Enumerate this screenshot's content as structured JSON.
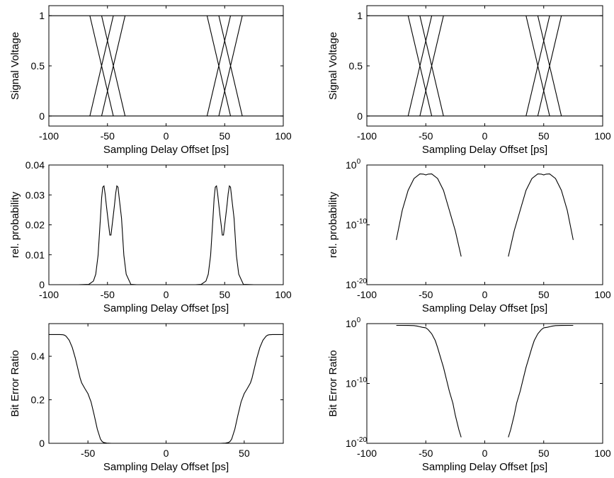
{
  "chart_data": [
    {
      "type": "line",
      "panel": "top-left",
      "xlabel": "Sampling Delay Offset [ps]",
      "ylabel": "Signal Voltage",
      "xlim": [
        -100,
        100
      ],
      "ylim": [
        -0.1,
        1.1
      ],
      "yscale": "linear",
      "xticks": [
        -100,
        -50,
        0,
        50,
        100
      ],
      "yticks": [
        0,
        0.5,
        1
      ],
      "xticklabels": [
        "-100",
        "-50",
        "0",
        "50",
        "100"
      ],
      "yticklabels": [
        "0",
        "0.5",
        "1"
      ],
      "grid": false,
      "series": [
        {
          "x": [
            -100,
            100
          ],
          "y": [
            1,
            1
          ]
        },
        {
          "x": [
            -100,
            100
          ],
          "y": [
            0,
            0
          ]
        },
        {
          "x": [
            -65,
            -45
          ],
          "y": [
            1,
            0
          ]
        },
        {
          "x": [
            -55,
            -35
          ],
          "y": [
            1,
            0
          ]
        },
        {
          "x": [
            -65,
            -45
          ],
          "y": [
            0,
            1
          ]
        },
        {
          "x": [
            -55,
            -35
          ],
          "y": [
            0,
            1
          ]
        },
        {
          "x": [
            35,
            55
          ],
          "y": [
            1,
            0
          ]
        },
        {
          "x": [
            45,
            65
          ],
          "y": [
            1,
            0
          ]
        },
        {
          "x": [
            35,
            55
          ],
          "y": [
            0,
            1
          ]
        },
        {
          "x": [
            45,
            65
          ],
          "y": [
            0,
            1
          ]
        }
      ]
    },
    {
      "type": "line",
      "panel": "top-right",
      "xlabel": "Sampling Delay Offset [ps]",
      "ylabel": "Signal Voltage",
      "xlim": [
        -100,
        100
      ],
      "ylim": [
        -0.1,
        1.1
      ],
      "yscale": "linear",
      "xticks": [
        -100,
        -50,
        0,
        50,
        100
      ],
      "yticks": [
        0,
        0.5,
        1
      ],
      "xticklabels": [
        "-100",
        "-50",
        "0",
        "50",
        "100"
      ],
      "yticklabels": [
        "0",
        "0.5",
        "1"
      ],
      "grid": false,
      "series": [
        {
          "x": [
            -100,
            100
          ],
          "y": [
            1,
            1
          ]
        },
        {
          "x": [
            -100,
            100
          ],
          "y": [
            0,
            0
          ]
        },
        {
          "x": [
            -65,
            -45
          ],
          "y": [
            1,
            0
          ]
        },
        {
          "x": [
            -55,
            -35
          ],
          "y": [
            1,
            0
          ]
        },
        {
          "x": [
            -65,
            -45
          ],
          "y": [
            0,
            1
          ]
        },
        {
          "x": [
            -55,
            -35
          ],
          "y": [
            0,
            1
          ]
        },
        {
          "x": [
            35,
            55
          ],
          "y": [
            1,
            0
          ]
        },
        {
          "x": [
            45,
            65
          ],
          "y": [
            1,
            0
          ]
        },
        {
          "x": [
            35,
            55
          ],
          "y": [
            0,
            1
          ]
        },
        {
          "x": [
            45,
            65
          ],
          "y": [
            0,
            1
          ]
        }
      ]
    },
    {
      "type": "line",
      "panel": "middle-left",
      "xlabel": "Sampling Delay Offset [ps]",
      "ylabel": "rel. probability",
      "xlim": [
        -100,
        100
      ],
      "ylim": [
        0,
        0.04
      ],
      "yscale": "linear",
      "xticks": [
        -100,
        -50,
        0,
        50,
        100
      ],
      "yticks": [
        0,
        0.01,
        0.02,
        0.03,
        0.04
      ],
      "xticklabels": [
        "-100",
        "-50",
        "0",
        "50",
        "100"
      ],
      "yticklabels": [
        "0",
        "0.01",
        "0.02",
        "0.03",
        "0.04"
      ],
      "grid": false,
      "series": [
        {
          "x": [
            -75,
            -66,
            -62,
            -60,
            -58,
            -56,
            -55,
            -54,
            -53,
            -52,
            -51,
            -50,
            -49,
            -48,
            -47,
            -46,
            -45,
            -44,
            -43,
            -42,
            -41,
            -40,
            -38,
            -36,
            -34,
            -30,
            -25
          ],
          "y": [
            0,
            0.0001,
            0.0012,
            0.0035,
            0.0098,
            0.0222,
            0.029,
            0.0326,
            0.033,
            0.0304,
            0.0267,
            0.0232,
            0.02,
            0.0166,
            0.0166,
            0.02,
            0.0232,
            0.0267,
            0.0304,
            0.033,
            0.0326,
            0.029,
            0.0222,
            0.0098,
            0.0035,
            0.0001,
            0
          ]
        },
        {
          "x": [
            25,
            30,
            34,
            36,
            38,
            40,
            41,
            42,
            43,
            44,
            45,
            46,
            47,
            48,
            49,
            50,
            51,
            52,
            53,
            54,
            55,
            56,
            58,
            60,
            62,
            66,
            75
          ],
          "y": [
            0,
            0.0001,
            0.0012,
            0.0035,
            0.0098,
            0.0222,
            0.029,
            0.0326,
            0.033,
            0.0304,
            0.0267,
            0.0232,
            0.02,
            0.0166,
            0.0166,
            0.02,
            0.0232,
            0.0267,
            0.0304,
            0.033,
            0.0326,
            0.029,
            0.0222,
            0.0098,
            0.0035,
            0.0001,
            0
          ]
        }
      ]
    },
    {
      "type": "line",
      "panel": "middle-right",
      "xlabel": "Sampling Delay Offset [ps]",
      "ylabel": "rel. probability",
      "xlim": [
        -100,
        100
      ],
      "ylim": [
        1e-20,
        1
      ],
      "yscale": "log",
      "xticks": [
        -100,
        -50,
        0,
        50,
        100
      ],
      "yticks": [
        1e-20,
        1e-10,
        1
      ],
      "xticklabels": [
        "-100",
        "-50",
        "0",
        "50",
        "100"
      ],
      "yticklabels": [
        {
          "base": "10",
          "exp": "-20"
        },
        {
          "base": "10",
          "exp": "-10"
        },
        {
          "base": "10",
          "exp": "0"
        }
      ],
      "grid": false,
      "series": [
        {
          "x": [
            -75,
            -70,
            -65,
            -60,
            -55,
            -52,
            -50,
            -48,
            -45,
            -40,
            -35,
            -30,
            -25,
            -20
          ],
          "y": [
            3e-13,
            2.7e-08,
            6e-05,
            0.0055,
            0.032,
            0.03,
            0.022,
            0.03,
            0.032,
            0.0055,
            6e-05,
            2.7e-08,
            1e-11,
            5e-16
          ]
        },
        {
          "x": [
            20,
            25,
            30,
            35,
            40,
            45,
            48,
            50,
            52,
            55,
            60,
            65,
            70,
            75
          ],
          "y": [
            5e-16,
            1e-11,
            2.7e-08,
            6e-05,
            0.0055,
            0.032,
            0.03,
            0.022,
            0.03,
            0.032,
            0.0055,
            6e-05,
            2.7e-08,
            3e-13
          ]
        }
      ]
    },
    {
      "type": "line",
      "panel": "bottom-left",
      "xlabel": "Sampling Delay Offset [ps]",
      "ylabel": "Bit Error Ratio",
      "xlim": [
        -75,
        75
      ],
      "ylim": [
        0,
        0.55
      ],
      "yscale": "linear",
      "xticks": [
        -50,
        0,
        50
      ],
      "yticks": [
        0,
        0.2,
        0.4
      ],
      "xticklabels": [
        "-50",
        "0",
        "50"
      ],
      "yticklabels": [
        "0",
        "0.2",
        "0.4"
      ],
      "grid": false,
      "series": [
        {
          "x": [
            -75,
            -68,
            -66,
            -65,
            -64,
            -62,
            -60,
            -58,
            -56,
            -55,
            -54,
            -52,
            -50,
            -48,
            -46,
            -44,
            -42,
            -41,
            -40,
            -38,
            -35,
            -30,
            -20
          ],
          "y": [
            0.5,
            0.5,
            0.499,
            0.497,
            0.492,
            0.474,
            0.44,
            0.39,
            0.33,
            0.3,
            0.278,
            0.252,
            0.228,
            0.19,
            0.13,
            0.065,
            0.02,
            0.009,
            0.004,
            0.001,
            0,
            0,
            0
          ]
        },
        {
          "x": [
            20,
            30,
            35,
            38,
            40,
            41,
            42,
            44,
            46,
            48,
            50,
            52,
            54,
            55,
            56,
            58,
            60,
            62,
            64,
            65,
            66,
            68,
            75
          ],
          "y": [
            0,
            0,
            0,
            0.001,
            0.004,
            0.009,
            0.02,
            0.065,
            0.13,
            0.19,
            0.228,
            0.252,
            0.278,
            0.3,
            0.33,
            0.39,
            0.44,
            0.474,
            0.492,
            0.497,
            0.499,
            0.5,
            0.5
          ]
        }
      ]
    },
    {
      "type": "line",
      "panel": "bottom-right",
      "xlabel": "Sampling Delay Offset [ps]",
      "ylabel": "Bit Error Ratio",
      "xlim": [
        -100,
        100
      ],
      "ylim": [
        1e-20,
        1
      ],
      "yscale": "log",
      "xticks": [
        -100,
        -50,
        0,
        50,
        100
      ],
      "yticks": [
        1e-20,
        1e-10,
        1
      ],
      "xticklabels": [
        "-100",
        "-50",
        "0",
        "50",
        "100"
      ],
      "yticklabels": [
        {
          "base": "10",
          "exp": "-20"
        },
        {
          "base": "10",
          "exp": "-10"
        },
        {
          "base": "10",
          "exp": "0"
        }
      ],
      "grid": false,
      "series": [
        {
          "x": [
            -75,
            -65,
            -60,
            -57,
            -55,
            -53,
            -50,
            -48,
            -45,
            -42,
            -40,
            -37,
            -35,
            -32,
            -30,
            -27,
            -25,
            -22,
            -20
          ],
          "y": [
            0.5,
            0.49,
            0.46,
            0.38,
            0.3,
            0.24,
            0.2,
            0.1,
            0.02,
            0.0015,
            0.0001,
            1e-06,
            5e-08,
            2e-10,
            5e-12,
            5e-14,
            5e-16,
            2e-18,
            1e-19
          ]
        },
        {
          "x": [
            20,
            22,
            25,
            27,
            30,
            32,
            35,
            37,
            40,
            42,
            45,
            48,
            50,
            53,
            55,
            57,
            60,
            65,
            75
          ],
          "y": [
            1e-19,
            2e-18,
            5e-16,
            5e-14,
            5e-12,
            2e-10,
            5e-08,
            1e-06,
            0.0001,
            0.0015,
            0.02,
            0.1,
            0.2,
            0.24,
            0.3,
            0.38,
            0.46,
            0.49,
            0.5
          ]
        }
      ]
    }
  ]
}
